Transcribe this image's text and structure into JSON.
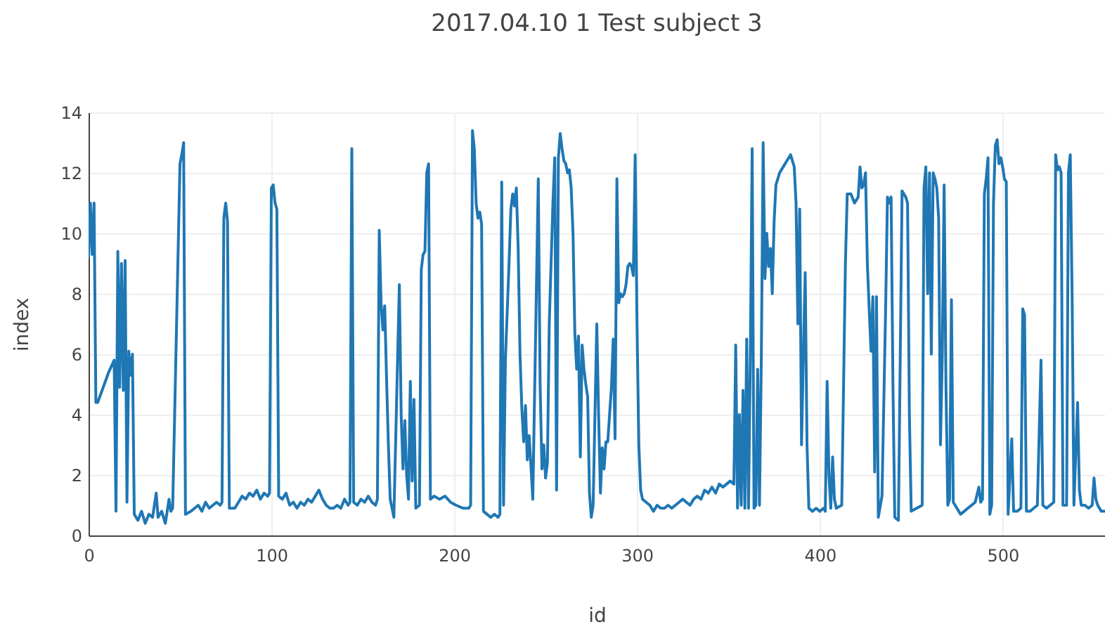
{
  "chart_data": {
    "type": "line",
    "title": "2017.04.10 1 Test subject 3",
    "xlabel": "id",
    "ylabel": "index",
    "color": "#1f77b4",
    "x": [
      0,
      1,
      2,
      3,
      4,
      5,
      8,
      11,
      14,
      15,
      16,
      17,
      18,
      19,
      20,
      21,
      22,
      23,
      24,
      25,
      27,
      29,
      31,
      33,
      35,
      37,
      38,
      40,
      42,
      44,
      45,
      46,
      50,
      51,
      52,
      53,
      56,
      58,
      60,
      62,
      64,
      66,
      68,
      70,
      72,
      73,
      74,
      75,
      76,
      77,
      80,
      82,
      84,
      86,
      88,
      90,
      92,
      94,
      96,
      98,
      99,
      100,
      101,
      102,
      103,
      104,
      106,
      108,
      110,
      112,
      114,
      116,
      118,
      120,
      122,
      124,
      126,
      128,
      130,
      132,
      134,
      136,
      138,
      140,
      142,
      143,
      144,
      145,
      147,
      149,
      151,
      153,
      155,
      157,
      158,
      159,
      160,
      161,
      162,
      163,
      164,
      165,
      167,
      170,
      171,
      172,
      173,
      174,
      175,
      176,
      177,
      178,
      179,
      181,
      182,
      183,
      184,
      185,
      186,
      187,
      189,
      192,
      195,
      198,
      201,
      205,
      208,
      209,
      210,
      211,
      212,
      213,
      214,
      215,
      216,
      218,
      220,
      222,
      224,
      225,
      226,
      227,
      228,
      230,
      231,
      232,
      233,
      234,
      235,
      236,
      237,
      238,
      239,
      240,
      241,
      242,
      243,
      246,
      247,
      248,
      249,
      250,
      251,
      252,
      253,
      254,
      255,
      256,
      257,
      258,
      259,
      260,
      261,
      262,
      263,
      264,
      265,
      266,
      267,
      268,
      269,
      270,
      271,
      272,
      273,
      274,
      275,
      276,
      278,
      279,
      280,
      281,
      282,
      283,
      284,
      285,
      286,
      287,
      288,
      289,
      290,
      291,
      292,
      293,
      294,
      295,
      296,
      297,
      298,
      299,
      300,
      301,
      302,
      303,
      305,
      307,
      309,
      311,
      313,
      315,
      317,
      319,
      321,
      323,
      325,
      327,
      329,
      331,
      333,
      335,
      337,
      339,
      341,
      343,
      345,
      347,
      349,
      351,
      353,
      354,
      355,
      356,
      357,
      358,
      359,
      360,
      361,
      362,
      363,
      364,
      365,
      366,
      367,
      368,
      369,
      370,
      371,
      372,
      373,
      374,
      375,
      376,
      378,
      380,
      382,
      384,
      386,
      387,
      388,
      389,
      390,
      391,
      392,
      393,
      394,
      396,
      398,
      400,
      402,
      403,
      404,
      405,
      406,
      407,
      408,
      409,
      412,
      413,
      414,
      415,
      417,
      419,
      421,
      422,
      423,
      424,
      425,
      426,
      427,
      428,
      429,
      430,
      431,
      432,
      434,
      436,
      437,
      438,
      439,
      440,
      441,
      443,
      445,
      447,
      448,
      449,
      450,
      453,
      456,
      457,
      458,
      459,
      460,
      461,
      462,
      463,
      464,
      465,
      466,
      467,
      468,
      469,
      470,
      471,
      472,
      473,
      475,
      477,
      479,
      481,
      483,
      485,
      487,
      488,
      489,
      490,
      491,
      492,
      493,
      494,
      495,
      496,
      497,
      498,
      499,
      500,
      501,
      502,
      503,
      505,
      506,
      508,
      510,
      511,
      512,
      513,
      515,
      517,
      519,
      521,
      522,
      524,
      526,
      528,
      529,
      530,
      531,
      532,
      533,
      535,
      536,
      537,
      538,
      539,
      541,
      542,
      543,
      545,
      547,
      549,
      550,
      551,
      552,
      554,
      556
    ],
    "values": [
      9.2,
      11.0,
      9.3,
      11.0,
      4.4,
      4.4,
      4.9,
      5.4,
      5.8,
      0.8,
      9.4,
      4.9,
      9.0,
      4.8,
      9.1,
      1.1,
      6.1,
      5.3,
      6.0,
      0.7,
      0.5,
      0.8,
      0.4,
      0.7,
      0.6,
      1.4,
      0.6,
      0.8,
      0.4,
      1.2,
      0.8,
      0.9,
      12.3,
      12.6,
      13.0,
      0.7,
      0.8,
      0.9,
      1.0,
      0.8,
      1.1,
      0.9,
      1.0,
      1.1,
      1.0,
      1.1,
      10.5,
      11.0,
      10.4,
      0.9,
      0.9,
      1.1,
      1.3,
      1.2,
      1.4,
      1.3,
      1.5,
      1.2,
      1.4,
      1.3,
      1.4,
      11.5,
      11.6,
      11.0,
      10.8,
      1.3,
      1.2,
      1.4,
      1.0,
      1.1,
      0.9,
      1.1,
      1.0,
      1.2,
      1.1,
      1.3,
      1.5,
      1.2,
      1.0,
      0.9,
      0.9,
      1.0,
      0.9,
      1.2,
      1.0,
      1.1,
      12.8,
      1.1,
      1.0,
      1.2,
      1.1,
      1.3,
      1.1,
      1.0,
      1.2,
      10.1,
      7.7,
      6.8,
      7.6,
      5.2,
      3.0,
      1.2,
      0.6,
      8.3,
      4.0,
      2.2,
      3.8,
      2.0,
      1.2,
      5.1,
      1.8,
      4.5,
      0.9,
      1.0,
      8.8,
      9.3,
      9.4,
      12.0,
      12.3,
      1.2,
      1.3,
      1.2,
      1.3,
      1.1,
      1.0,
      0.9,
      0.9,
      1.0,
      13.4,
      12.8,
      11.0,
      10.5,
      10.7,
      10.3,
      0.8,
      0.7,
      0.6,
      0.7,
      0.6,
      0.7,
      11.7,
      1.0,
      5.8,
      9.0,
      10.8,
      11.3,
      10.9,
      11.5,
      9.5,
      6.0,
      4.2,
      3.1,
      4.3,
      2.5,
      3.3,
      2.3,
      1.2,
      11.8,
      5.0,
      2.2,
      3.0,
      1.9,
      2.4,
      7.0,
      9.0,
      11.0,
      12.5,
      1.5,
      12.5,
      13.3,
      12.8,
      12.4,
      12.3,
      12.0,
      12.1,
      11.5,
      10.0,
      6.7,
      5.5,
      6.6,
      2.6,
      6.3,
      5.5,
      5.0,
      4.6,
      1.4,
      0.6,
      1.0,
      7.0,
      4.0,
      1.4,
      2.9,
      2.2,
      3.1,
      3.1,
      4.0,
      4.9,
      6.5,
      3.2,
      11.8,
      7.7,
      8.0,
      7.9,
      8.0,
      8.3,
      8.9,
      9.0,
      8.9,
      8.6,
      12.6,
      7.0,
      3.0,
      1.5,
      1.2,
      1.1,
      1.0,
      0.8,
      1.0,
      0.9,
      0.9,
      1.0,
      0.9,
      1.0,
      1.1,
      1.2,
      1.1,
      1.0,
      1.2,
      1.3,
      1.2,
      1.5,
      1.4,
      1.6,
      1.4,
      1.7,
      1.6,
      1.7,
      1.8,
      1.7,
      6.3,
      0.9,
      4.0,
      1.0,
      4.8,
      0.9,
      6.5,
      0.9,
      6.0,
      12.8,
      0.9,
      1.0,
      5.5,
      1.0,
      5.8,
      13.0,
      8.5,
      10.0,
      8.9,
      9.5,
      8.0,
      10.4,
      11.6,
      12.0,
      12.2,
      12.4,
      12.6,
      12.2,
      11.0,
      7.0,
      10.8,
      3.0,
      6.0,
      8.7,
      3.0,
      0.9,
      0.8,
      0.9,
      0.8,
      0.9,
      0.8,
      5.1,
      2.0,
      0.9,
      2.6,
      1.2,
      0.9,
      1.0,
      5.0,
      9.0,
      11.3,
      11.3,
      11.0,
      11.2,
      12.2,
      11.5,
      11.6,
      12.0,
      9.0,
      7.5,
      6.1,
      7.9,
      2.1,
      7.9,
      0.6,
      1.3,
      7.5,
      11.2,
      11.0,
      11.2,
      5.0,
      0.6,
      0.5,
      11.4,
      11.2,
      11.0,
      4.0,
      0.8,
      0.9,
      1.0,
      11.5,
      12.2,
      8.0,
      12.0,
      6.0,
      12.0,
      11.8,
      11.5,
      10.5,
      3.0,
      6.0,
      11.6,
      5.0,
      1.0,
      1.2,
      7.8,
      1.1,
      0.9,
      0.7,
      0.8,
      0.9,
      1.0,
      1.1,
      1.6,
      1.1,
      1.2,
      11.3,
      11.8,
      12.5,
      0.7,
      1.0,
      11.0,
      12.9,
      13.1,
      12.3,
      12.5,
      12.2,
      11.8,
      11.7,
      0.7,
      3.2,
      0.8,
      0.8,
      0.9,
      7.5,
      7.3,
      0.8,
      0.8,
      0.9,
      1.0,
      5.8,
      1.0,
      0.9,
      1.0,
      1.1,
      12.6,
      12.1,
      12.2,
      12.0,
      1.0,
      1.0,
      12.0,
      12.6,
      8.0,
      1.0,
      4.4,
      1.5,
      1.0,
      1.0,
      0.9,
      1.0,
      1.9,
      1.2,
      1.0,
      0.8,
      0.8
    ],
    "xlim": [
      0,
      556
    ],
    "xticks": [
      0,
      100,
      200,
      300,
      400,
      500
    ],
    "ylim": [
      0,
      14
    ],
    "yticks": [
      0,
      2,
      4,
      6,
      8,
      10,
      12,
      14
    ],
    "grid": true
  }
}
